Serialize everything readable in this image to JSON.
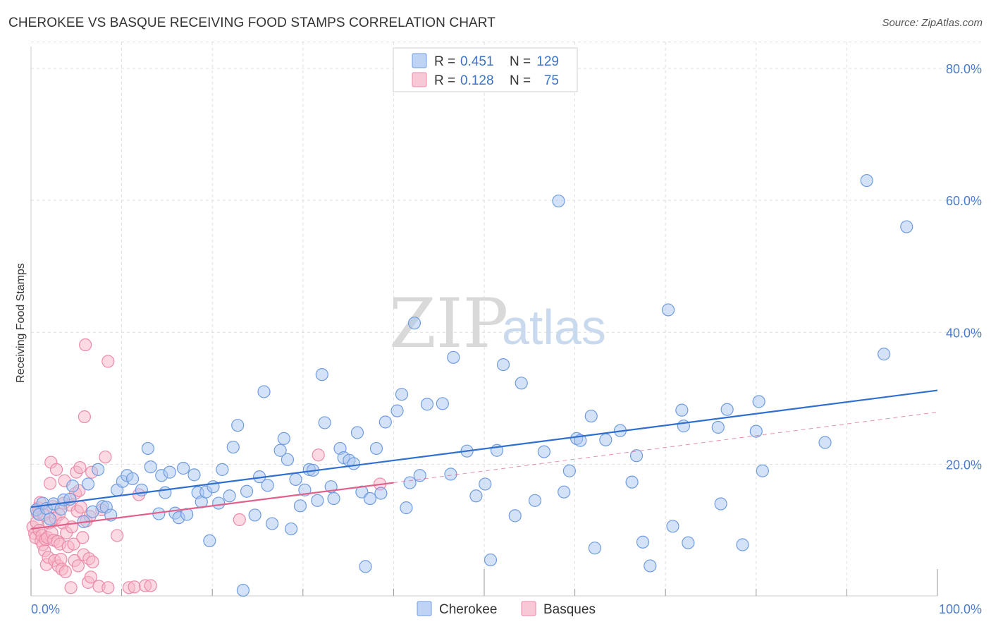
{
  "title": "CHEROKEE VS BASQUE RECEIVING FOOD STAMPS CORRELATION CHART",
  "source": "Source: ZipAtlas.com",
  "watermark": {
    "zip": "ZIP",
    "atlas": "atlas"
  },
  "colors": {
    "cherokee_fill": "#a9c6f0",
    "cherokee_stroke": "#6f9ce0",
    "cherokee_line": "#2f6fd0",
    "basque_fill": "#f7b6c8",
    "basque_stroke": "#ec8aa8",
    "basque_line": "#e0608a",
    "grid": "#dddddd",
    "tick_text": "#4a7cc9"
  },
  "legend": {
    "rows": [
      {
        "r_label": "R =",
        "r_value": "0.451",
        "n_label": "N =",
        "n_value": "129"
      },
      {
        "r_label": "R =",
        "r_value": "0.128",
        "n_label": "N =",
        "n_value": "75"
      }
    ]
  },
  "chart_data": {
    "type": "scatter",
    "title": "CHEROKEE VS BASQUE RECEIVING FOOD STAMPS CORRELATION CHART",
    "xlabel": "",
    "ylabel": "Receiving Food Stamps",
    "xlim": [
      0,
      100
    ],
    "ylim": [
      0,
      84
    ],
    "x_tick_labels": [
      "0.0%",
      "100.0%"
    ],
    "y_ticks": [
      20,
      40,
      60,
      80
    ],
    "y_tick_labels": [
      "20.0%",
      "40.0%",
      "60.0%",
      "80.0%"
    ],
    "grid": true,
    "legend_position": "top-center",
    "series": [
      {
        "name": "Cherokee",
        "trend": {
          "x0": 0,
          "y0": 13.5,
          "x1": 100,
          "y1": 31.2,
          "style": "solid"
        },
        "points": [
          [
            0.6,
            13.1
          ],
          [
            0.9,
            12.4
          ],
          [
            1.3,
            14.1
          ],
          [
            1.7,
            13.3
          ],
          [
            2.1,
            11.7
          ],
          [
            2.5,
            14.0
          ],
          [
            3.3,
            13.2
          ],
          [
            3.6,
            14.6
          ],
          [
            4.3,
            14.7
          ],
          [
            4.6,
            16.7
          ],
          [
            5.8,
            11.3
          ],
          [
            6.3,
            17.0
          ],
          [
            6.8,
            12.8
          ],
          [
            7.4,
            19.2
          ],
          [
            7.9,
            13.6
          ],
          [
            8.3,
            13.5
          ],
          [
            8.8,
            12.3
          ],
          [
            9.5,
            16.1
          ],
          [
            10.1,
            17.4
          ],
          [
            10.6,
            18.3
          ],
          [
            11.2,
            17.8
          ],
          [
            12.2,
            16.1
          ],
          [
            12.9,
            22.4
          ],
          [
            13.2,
            19.6
          ],
          [
            14.1,
            12.5
          ],
          [
            14.4,
            18.3
          ],
          [
            14.8,
            15.7
          ],
          [
            15.3,
            18.8
          ],
          [
            15.9,
            12.6
          ],
          [
            16.3,
            11.9
          ],
          [
            16.8,
            19.4
          ],
          [
            17.2,
            12.4
          ],
          [
            18.0,
            18.4
          ],
          [
            18.4,
            15.7
          ],
          [
            18.8,
            14.3
          ],
          [
            19.3,
            15.8
          ],
          [
            19.7,
            8.4
          ],
          [
            20.1,
            16.6
          ],
          [
            20.7,
            14.1
          ],
          [
            21.1,
            19.2
          ],
          [
            21.9,
            15.2
          ],
          [
            22.3,
            22.6
          ],
          [
            22.8,
            25.9
          ],
          [
            23.4,
            0.9
          ],
          [
            23.8,
            15.9
          ],
          [
            24.7,
            12.3
          ],
          [
            25.2,
            18.1
          ],
          [
            25.7,
            31.0
          ],
          [
            26.1,
            16.8
          ],
          [
            26.6,
            11.0
          ],
          [
            27.5,
            22.1
          ],
          [
            27.9,
            23.9
          ],
          [
            28.3,
            20.7
          ],
          [
            28.7,
            10.2
          ],
          [
            29.2,
            17.7
          ],
          [
            29.7,
            13.7
          ],
          [
            30.2,
            16.1
          ],
          [
            30.7,
            19.2
          ],
          [
            31.1,
            19.1
          ],
          [
            31.6,
            14.5
          ],
          [
            32.1,
            33.6
          ],
          [
            32.4,
            26.3
          ],
          [
            33.1,
            16.6
          ],
          [
            33.4,
            14.8
          ],
          [
            34.1,
            22.4
          ],
          [
            34.5,
            21.0
          ],
          [
            35.1,
            20.6
          ],
          [
            35.6,
            20.1
          ],
          [
            36.0,
            24.8
          ],
          [
            36.5,
            15.8
          ],
          [
            36.9,
            4.5
          ],
          [
            37.4,
            14.8
          ],
          [
            38.1,
            22.4
          ],
          [
            38.6,
            15.6
          ],
          [
            39.1,
            26.4
          ],
          [
            40.4,
            28.1
          ],
          [
            40.9,
            30.6
          ],
          [
            41.4,
            13.4
          ],
          [
            41.8,
            17.2
          ],
          [
            42.3,
            41.4
          ],
          [
            42.9,
            18.3
          ],
          [
            43.7,
            29.1
          ],
          [
            45.4,
            29.2
          ],
          [
            46.3,
            18.5
          ],
          [
            46.6,
            36.2
          ],
          [
            48.1,
            22.0
          ],
          [
            49.1,
            15.2
          ],
          [
            50.1,
            17.0
          ],
          [
            50.7,
            5.5
          ],
          [
            51.4,
            22.1
          ],
          [
            52.1,
            35.1
          ],
          [
            53.4,
            12.2
          ],
          [
            54.1,
            32.3
          ],
          [
            55.6,
            14.5
          ],
          [
            56.6,
            21.9
          ],
          [
            58.2,
            59.9
          ],
          [
            58.8,
            15.8
          ],
          [
            59.4,
            19.0
          ],
          [
            60.2,
            23.9
          ],
          [
            60.6,
            23.6
          ],
          [
            61.8,
            27.3
          ],
          [
            62.2,
            7.3
          ],
          [
            63.4,
            23.7
          ],
          [
            65.0,
            25.1
          ],
          [
            66.3,
            17.3
          ],
          [
            66.8,
            21.3
          ],
          [
            67.5,
            8.2
          ],
          [
            68.3,
            4.6
          ],
          [
            70.3,
            43.4
          ],
          [
            70.8,
            10.6
          ],
          [
            71.8,
            28.2
          ],
          [
            72.0,
            25.8
          ],
          [
            72.5,
            8.1
          ],
          [
            75.8,
            25.6
          ],
          [
            76.1,
            14.0
          ],
          [
            76.8,
            28.3
          ],
          [
            78.5,
            7.8
          ],
          [
            80.0,
            25.0
          ],
          [
            80.3,
            29.5
          ],
          [
            80.7,
            19.0
          ],
          [
            87.6,
            23.3
          ],
          [
            92.2,
            63.0
          ],
          [
            94.1,
            36.7
          ],
          [
            96.6,
            56.0
          ]
        ]
      },
      {
        "name": "Basques",
        "trend": {
          "x0": 0,
          "y0": 10.2,
          "x1": 40,
          "y1": 17.2,
          "style": "solid",
          "extension": {
            "x1": 100,
            "y1": 27.9,
            "style": "dashed"
          }
        },
        "points": [
          [
            0.2,
            10.5
          ],
          [
            0.4,
            9.5
          ],
          [
            0.5,
            8.9
          ],
          [
            0.6,
            11.2
          ],
          [
            0.7,
            12.6
          ],
          [
            0.8,
            13.4
          ],
          [
            0.9,
            10.0
          ],
          [
            1.0,
            14.2
          ],
          [
            1.1,
            8.4
          ],
          [
            1.2,
            9.2
          ],
          [
            1.3,
            7.8
          ],
          [
            1.4,
            12.3
          ],
          [
            1.5,
            6.9
          ],
          [
            1.6,
            8.6
          ],
          [
            1.7,
            4.8
          ],
          [
            1.8,
            8.9
          ],
          [
            1.9,
            5.9
          ],
          [
            2.0,
            11.1
          ],
          [
            2.1,
            17.1
          ],
          [
            2.2,
            20.3
          ],
          [
            2.3,
            9.6
          ],
          [
            2.4,
            13.6
          ],
          [
            2.5,
            8.5
          ],
          [
            2.6,
            5.4
          ],
          [
            2.7,
            11.8
          ],
          [
            2.8,
            19.2
          ],
          [
            2.9,
            8.3
          ],
          [
            3.0,
            4.6
          ],
          [
            3.1,
            12.4
          ],
          [
            3.2,
            7.9
          ],
          [
            3.3,
            5.6
          ],
          [
            3.4,
            4.1
          ],
          [
            3.5,
            11.1
          ],
          [
            3.6,
            14.1
          ],
          [
            3.7,
            17.5
          ],
          [
            3.8,
            3.7
          ],
          [
            3.9,
            9.6
          ],
          [
            4.1,
            7.5
          ],
          [
            4.3,
            13.8
          ],
          [
            4.4,
            1.3
          ],
          [
            4.5,
            10.5
          ],
          [
            4.7,
            7.9
          ],
          [
            4.8,
            5.4
          ],
          [
            4.9,
            15.6
          ],
          [
            5.0,
            18.8
          ],
          [
            5.1,
            12.9
          ],
          [
            5.2,
            4.6
          ],
          [
            5.3,
            16.0
          ],
          [
            5.4,
            19.5
          ],
          [
            5.5,
            13.5
          ],
          [
            5.7,
            8.9
          ],
          [
            5.8,
            6.3
          ],
          [
            5.9,
            27.2
          ],
          [
            6.0,
            38.1
          ],
          [
            6.1,
            11.4
          ],
          [
            6.3,
            2.1
          ],
          [
            6.4,
            5.7
          ],
          [
            6.5,
            12.1
          ],
          [
            6.6,
            2.9
          ],
          [
            6.7,
            18.8
          ],
          [
            6.8,
            5.2
          ],
          [
            7.5,
            1.5
          ],
          [
            7.8,
            13.1
          ],
          [
            8.2,
            21.1
          ],
          [
            8.5,
            35.6
          ],
          [
            8.5,
            1.3
          ],
          [
            9.5,
            9.2
          ],
          [
            10.8,
            1.3
          ],
          [
            11.4,
            1.4
          ],
          [
            11.9,
            15.4
          ],
          [
            12.6,
            1.6
          ],
          [
            13.2,
            1.6
          ],
          [
            23.0,
            11.6
          ],
          [
            31.7,
            21.4
          ],
          [
            38.5,
            17.0
          ]
        ]
      }
    ]
  },
  "bottom_legend": {
    "items": [
      "Cherokee",
      "Basques"
    ]
  }
}
